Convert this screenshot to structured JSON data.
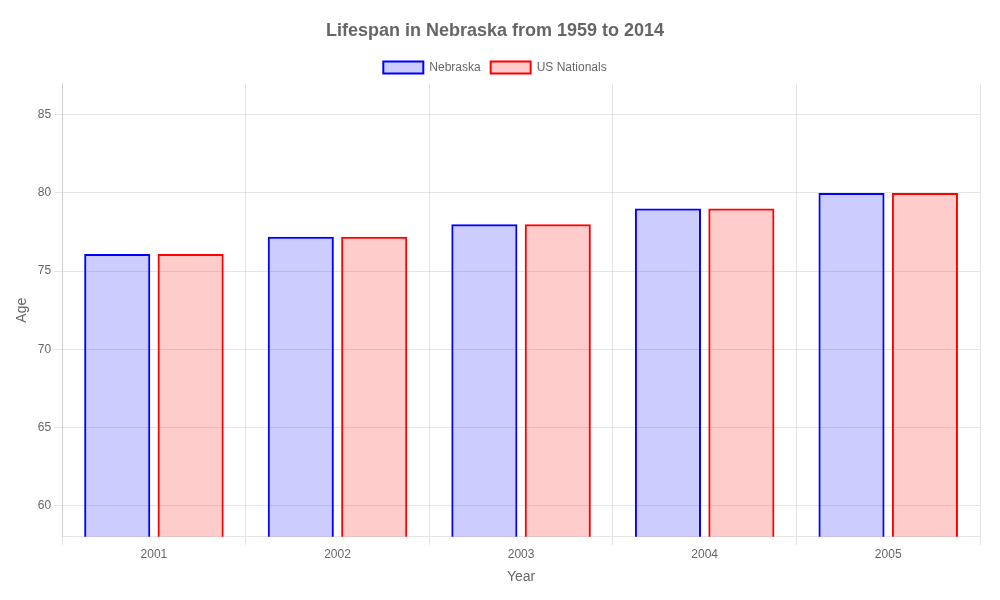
{
  "chart_data": {
    "type": "bar",
    "title": "Lifespan in Nebraska from 1959 to 2014",
    "x_label": "Year",
    "y_label": "Age",
    "categories": [
      "2001",
      "2002",
      "2003",
      "2004",
      "2005"
    ],
    "series": [
      {
        "name": "Nebraska",
        "color": "#0000ff",
        "values": [
          76.1,
          77.2,
          78.0,
          79.0,
          80.0
        ]
      },
      {
        "name": "US Nationals",
        "color": "#ff0000",
        "values": [
          76.1,
          77.2,
          78.0,
          79.0,
          80.0
        ]
      }
    ],
    "ylim": [
      58,
      87
    ],
    "yticks": [
      60,
      65,
      70,
      75,
      80,
      85
    ],
    "grid": true,
    "legend": "top"
  }
}
